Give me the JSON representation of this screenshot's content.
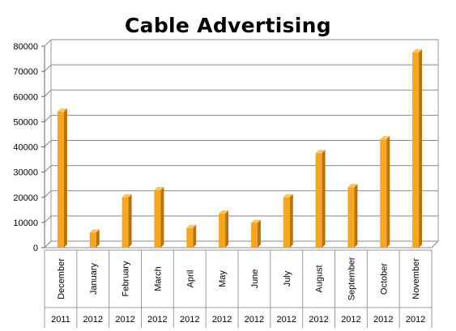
{
  "chart_data": {
    "type": "bar",
    "title": "Cable Advertising",
    "xlabel": "",
    "ylabel": "",
    "ylim": [
      0,
      80000
    ],
    "yticks": [
      0,
      10000,
      20000,
      30000,
      40000,
      50000,
      60000,
      70000,
      80000
    ],
    "grid": true,
    "legend": "none",
    "bar_color": "#f5a623",
    "categories": [
      {
        "month": "December",
        "year": "2011"
      },
      {
        "month": "January",
        "year": "2012"
      },
      {
        "month": "February",
        "year": "2012"
      },
      {
        "month": "March",
        "year": "2012"
      },
      {
        "month": "April",
        "year": "2012"
      },
      {
        "month": "May",
        "year": "2012"
      },
      {
        "month": "June",
        "year": "2012"
      },
      {
        "month": "July",
        "year": "2012"
      },
      {
        "month": "August",
        "year": "2012"
      },
      {
        "month": "September",
        "year": "2012"
      },
      {
        "month": "October",
        "year": "2012"
      },
      {
        "month": "November",
        "year": "2012"
      }
    ],
    "values": [
      54000,
      6000,
      20000,
      22800,
      7800,
      13500,
      9800,
      20000,
      37500,
      24000,
      43000,
      77500
    ]
  }
}
